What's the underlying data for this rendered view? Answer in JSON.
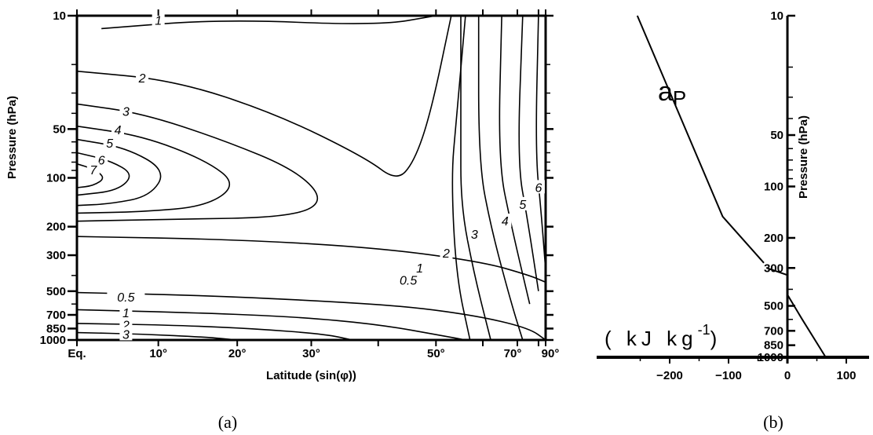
{
  "chart_data": [
    {
      "type": "contour",
      "panel_label": "(a)",
      "xlabel": "Latitude (sin(φ))",
      "ylabel": "Pressure (hPa)",
      "x_scale": "sin(latitude)",
      "y_scale": "log",
      "xlim_deg": [
        0,
        90
      ],
      "ylim_hpa": [
        1000,
        10
      ],
      "x_ticks": [
        "Eq.",
        "10°",
        "20°",
        "30°",
        "50°",
        "70°",
        "90°"
      ],
      "x_tick_values_deg": [
        0,
        10,
        20,
        30,
        50,
        70,
        90
      ],
      "y_ticks": [
        "10",
        "50",
        "100",
        "200",
        "300",
        "500",
        "700",
        "850",
        "1000"
      ],
      "y_tick_values_hpa": [
        10,
        50,
        100,
        200,
        300,
        500,
        700,
        850,
        1000
      ],
      "contour_levels": [
        "0.5",
        "1",
        "2",
        "3",
        "4",
        "5",
        "6",
        "7"
      ],
      "contour_labels": [
        {
          "text": "1",
          "lat": 10,
          "p": 11
        },
        {
          "text": "2",
          "lat": 8,
          "p": 25
        },
        {
          "text": "3",
          "lat": 6,
          "p": 40
        },
        {
          "text": "4",
          "lat": 5,
          "p": 52
        },
        {
          "text": "5",
          "lat": 4,
          "p": 63
        },
        {
          "text": "6",
          "lat": 3,
          "p": 80
        },
        {
          "text": "7",
          "lat": 2,
          "p": 92
        },
        {
          "text": "6",
          "lat": 80,
          "p": 118
        },
        {
          "text": "5",
          "lat": 72,
          "p": 150
        },
        {
          "text": "4",
          "lat": 66,
          "p": 190
        },
        {
          "text": "3",
          "lat": 58,
          "p": 230
        },
        {
          "text": "2",
          "lat": 52,
          "p": 300
        },
        {
          "text": "1",
          "lat": 47,
          "p": 370
        },
        {
          "text": "0.5",
          "lat": 45,
          "p": 440
        },
        {
          "text": "0.5",
          "lat": 6,
          "p": 560
        },
        {
          "text": "1",
          "lat": 6,
          "p": 700
        },
        {
          "text": "2",
          "lat": 6,
          "p": 830
        },
        {
          "text": "3",
          "lat": 6,
          "p": 950
        }
      ],
      "contours": [
        {
          "level": "1",
          "points": [
            [
              3,
              12
            ],
            [
              18,
              10.5
            ],
            [
              40,
              11.5
            ],
            [
              50,
              10
            ]
          ]
        },
        {
          "level": "1",
          "points": [
            [
              56,
              10
            ],
            [
              54,
              45
            ],
            [
              53,
              100
            ],
            [
              54,
              400
            ],
            [
              57,
              1000
            ]
          ]
        },
        {
          "level": "2",
          "points": [
            [
              0,
              22
            ],
            [
              12,
              25
            ],
            [
              25,
              40
            ],
            [
              38,
              75
            ],
            [
              43,
              105
            ],
            [
              46,
              80
            ],
            [
              49,
              40
            ],
            [
              53,
              10
            ]
          ]
        },
        {
          "level": "2",
          "points": [
            [
              55,
              10
            ],
            [
              55,
              50
            ],
            [
              55,
              150
            ],
            [
              58,
              400
            ],
            [
              62,
              1000
            ]
          ]
        },
        {
          "level": "3",
          "points": [
            [
              0,
              35
            ],
            [
              8,
              40
            ],
            [
              18,
              58
            ],
            [
              28,
              90
            ],
            [
              32,
              140
            ],
            [
              27,
              175
            ],
            [
              12,
              180
            ],
            [
              0,
              185
            ]
          ]
        },
        {
          "level": "3",
          "points": [
            [
              59,
              10
            ],
            [
              59,
              80
            ],
            [
              62,
              200
            ],
            [
              68,
              600
            ],
            [
              72,
              1000
            ]
          ]
        },
        {
          "level": "4",
          "points": [
            [
              0,
              48
            ],
            [
              8,
              55
            ],
            [
              16,
              78
            ],
            [
              20,
              110
            ],
            [
              16,
              150
            ],
            [
              8,
              162
            ],
            [
              0,
              165
            ]
          ]
        },
        {
          "level": "4",
          "points": [
            [
              65,
              10
            ],
            [
              64,
              80
            ],
            [
              68,
              200
            ],
            [
              75,
              600
            ]
          ]
        },
        {
          "level": "5",
          "points": [
            [
              0,
              58
            ],
            [
              6,
              65
            ],
            [
              11,
              90
            ],
            [
              9,
              130
            ],
            [
              4,
              145
            ],
            [
              0,
              148
            ]
          ]
        },
        {
          "level": "5",
          "points": [
            [
              72,
              10
            ],
            [
              70,
              80
            ],
            [
              74,
              180
            ],
            [
              80,
              500
            ]
          ]
        },
        {
          "level": "6",
          "points": [
            [
              0,
              70
            ],
            [
              4,
              78
            ],
            [
              7,
              95
            ],
            [
              5,
              120
            ],
            [
              0,
              128
            ]
          ]
        },
        {
          "level": "6",
          "points": [
            [
              80,
              10
            ],
            [
              78,
              70
            ],
            [
              82,
              160
            ],
            [
              88,
              350
            ]
          ]
        },
        {
          "level": "7",
          "points": [
            [
              0,
              82
            ],
            [
              2,
              88
            ],
            [
              3.5,
              100
            ],
            [
              2,
              112
            ],
            [
              0,
              115
            ]
          ]
        },
        {
          "level": "7",
          "points": [
            [
              90,
              90
            ],
            [
              88,
              100
            ],
            [
              90,
              110
            ]
          ]
        },
        {
          "level": "0.5",
          "points": [
            [
              0,
              230
            ],
            [
              20,
              240
            ],
            [
              40,
              270
            ],
            [
              60,
              330
            ],
            [
              75,
              400
            ],
            [
              90,
              440
            ]
          ]
        },
        {
          "level": "0.5",
          "points": [
            [
              0,
              510
            ],
            [
              15,
              530
            ],
            [
              30,
              570
            ],
            [
              45,
              620
            ],
            [
              60,
              720
            ],
            [
              75,
              850
            ],
            [
              90,
              1000
            ]
          ]
        },
        {
          "level": "1",
          "points": [
            [
              0,
              650
            ],
            [
              15,
              680
            ],
            [
              28,
              720
            ],
            [
              40,
              800
            ],
            [
              52,
              950
            ],
            [
              56,
              1000
            ]
          ]
        },
        {
          "level": "2",
          "points": [
            [
              0,
              790
            ],
            [
              12,
              810
            ],
            [
              22,
              850
            ],
            [
              32,
              920
            ],
            [
              36,
              1000
            ]
          ]
        },
        {
          "level": "3",
          "points": [
            [
              0,
              900
            ],
            [
              8,
              920
            ],
            [
              16,
              960
            ],
            [
              20,
              1000
            ]
          ]
        }
      ]
    },
    {
      "type": "line",
      "panel_label": "(b)",
      "series_label": "aₚ",
      "series_label_main": "a",
      "series_label_sub": "P",
      "unit_text": "( kJ kg",
      "unit_exp": "-1",
      "unit_close": ")",
      "ylabel": "Pressure (hPa)",
      "y_scale": "log",
      "ylim_hpa": [
        1000,
        10
      ],
      "y_ticks": [
        "10",
        "50",
        "100",
        "200",
        "300",
        "500",
        "700",
        "850",
        "1000"
      ],
      "y_tick_values_hpa": [
        10,
        50,
        100,
        200,
        300,
        500,
        700,
        850,
        1000
      ],
      "x_ticks": [
        "−200",
        "−100",
        "0",
        "100"
      ],
      "x_tick_values": [
        -200,
        -100,
        0,
        100
      ],
      "series": [
        {
          "values": [
            [
              -255,
              10
            ],
            [
              -110,
              150
            ],
            [
              -40,
              280
            ]
          ]
        },
        {
          "values": [
            [
              -35,
              300
            ],
            [
              0,
              330
            ]
          ]
        },
        {
          "values": [
            [
              0,
              430
            ],
            [
              25,
              600
            ],
            [
              65,
              1000
            ]
          ]
        }
      ]
    }
  ]
}
